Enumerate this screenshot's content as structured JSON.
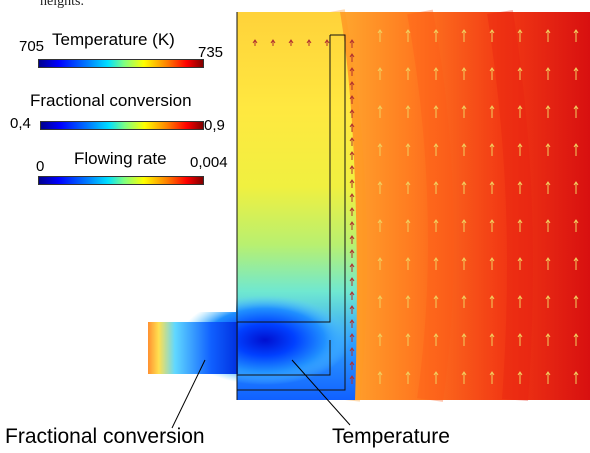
{
  "caption_fragment": "heights.",
  "legends": [
    {
      "title": "Temperature (K)",
      "min": "705",
      "max": "735"
    },
    {
      "title": "Fractional conversion",
      "min": "0,4",
      "max": "0,9"
    },
    {
      "title": "Flowing rate",
      "min": "0",
      "max": "0,004"
    }
  ],
  "callouts": {
    "left": "Fractional conversion",
    "right": "Temperature"
  },
  "colors": {
    "cold": "#0000ff",
    "mid": "#ffff00",
    "hot": "#ff0000",
    "arrow_outside": "#f0d060",
    "arrow_inside": "#b03030"
  }
}
